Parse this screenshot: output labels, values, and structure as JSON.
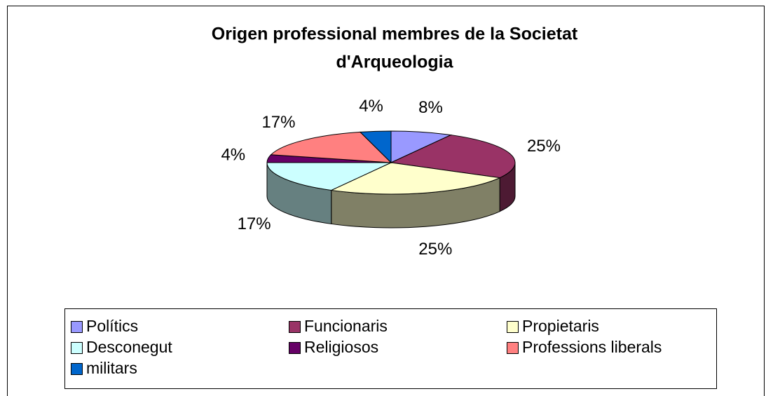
{
  "chart_data": {
    "type": "pie",
    "title": [
      "Origen professional membres de la Societat",
      "d'Arqueologia"
    ],
    "categories": [
      "Polítics",
      "Funcionaris",
      "Propietaris",
      "Desconegut",
      "Religiosos",
      "Professions liberals",
      "militars"
    ],
    "values": [
      8,
      25,
      25,
      17,
      4,
      17,
      4
    ],
    "value_labels": [
      "8%",
      "25%",
      "25%",
      "17%",
      "4%",
      "17%",
      "4%"
    ],
    "colors": [
      "#9999ff",
      "#993366",
      "#ffffcc",
      "#ccffff",
      "#660066",
      "#ff8080",
      "#0066cc"
    ],
    "legend": "bottom"
  }
}
